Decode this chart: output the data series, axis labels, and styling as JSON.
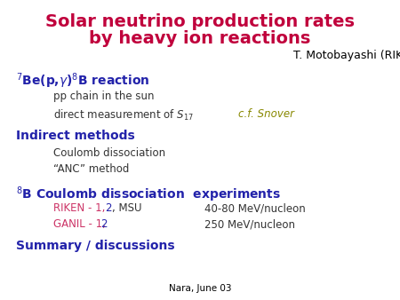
{
  "title_line1": "Solar neutrino production rates",
  "title_line2": "by heavy ion reactions",
  "title_color": "#c0003c",
  "title_fontsize": 14,
  "author": "T. Motobayashi (RIKEN)",
  "author_color": "#000000",
  "author_fontsize": 9,
  "footer": "Nara, June 03",
  "footer_color": "#000000",
  "footer_fontsize": 7.5,
  "bg_color": "#ffffff",
  "blue_color": "#2222aa",
  "black_color": "#333333",
  "red_color": "#cc3366",
  "olive_color": "#888800",
  "body_fontsize": 8.5,
  "header_fontsize": 10
}
